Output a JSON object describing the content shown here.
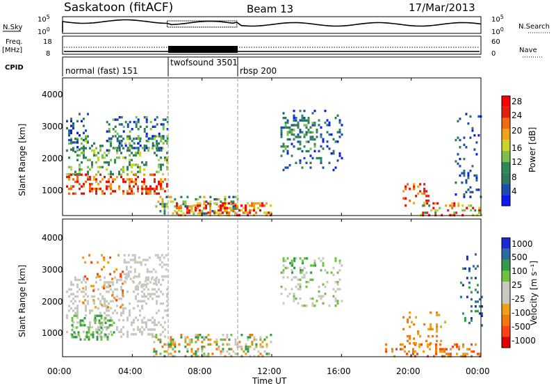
{
  "header": {
    "station": "Saskatoon (fitACF)",
    "beam": "Beam 13",
    "date": "17/Mar/2013"
  },
  "strips": {
    "nsky_label": "N.Sky",
    "nsky_ticks": [
      "10^5",
      "10^0"
    ],
    "nsearch_label": "N.Search",
    "nsearch_ticks": [
      "10^5",
      "10^0"
    ],
    "freq_label": "Freq.",
    "freq_unit": "[MHz]",
    "freq_ticks": [
      "18",
      "8"
    ],
    "nave_label": "Nave",
    "nave_ticks": [
      "60",
      "0"
    ],
    "cpid_label": "CPID",
    "cpid_segments": [
      {
        "name": "normal (fast) 151",
        "start_h": 0,
        "end_h": 6
      },
      {
        "name": "twofsound 3501",
        "start_h": 6,
        "end_h": 10
      },
      {
        "name": "rbsp 200",
        "start_h": 10,
        "end_h": 24
      }
    ]
  },
  "chart_data": [
    {
      "type": "heatmap",
      "name": "power",
      "ylabel": "Slant Range [km]",
      "ylim": [
        180,
        4500
      ],
      "yticks": [
        "4000",
        "3000",
        "2000",
        "1000"
      ],
      "xlim_hours": [
        0,
        24
      ],
      "colorbar_label": "Power [dB]",
      "colorbar_ticks": [
        "28",
        "24",
        "20",
        "16",
        "12",
        "8",
        "4"
      ],
      "colors": [
        "#0a1cf0",
        "#1b4fa8",
        "#2f7a5c",
        "#2e8b57",
        "#79c14a",
        "#c8d42a",
        "#f2a11a",
        "#ef6a10",
        "#e02010",
        "#ff0000"
      ]
    },
    {
      "type": "heatmap",
      "name": "velocity",
      "ylabel": "Slant Range [km]",
      "ylim": [
        180,
        4500
      ],
      "yticks": [
        "4000",
        "3000",
        "2000",
        "1000"
      ],
      "xlim_hours": [
        0,
        24
      ],
      "colorbar_label": "Velocity [m s⁻¹]",
      "colorbar_ticks": [
        "1000",
        "500",
        "100",
        "25",
        "-25",
        "-100",
        "-500",
        "-1000"
      ],
      "colors": [
        "#e00000",
        "#ff4010",
        "#f07a10",
        "#f0a010",
        "#c8c8c0",
        "#c8c8c0",
        "#70c040",
        "#2f9a4a",
        "#2a6aa0",
        "#1a2ad0"
      ]
    }
  ],
  "xaxis": {
    "tick_labels": [
      "00:00",
      "04:00",
      "08:00",
      "12:00",
      "16:00",
      "20:00",
      "00:00"
    ],
    "label": "Time UT"
  }
}
